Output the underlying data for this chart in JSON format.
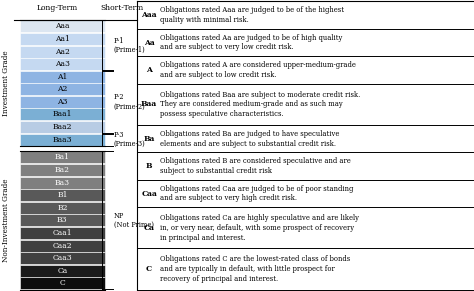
{
  "investment_grades": [
    "Aaa",
    "Aa1",
    "Aa2",
    "Aa3",
    "A1",
    "A2",
    "A3",
    "Baa1",
    "Baa2",
    "Baa3"
  ],
  "non_investment_grades": [
    "Ba1",
    "Ba2",
    "Ba3",
    "B1",
    "B2",
    "B3",
    "Caa1",
    "Caa2",
    "Caa3",
    "Ca",
    "C"
  ],
  "inv_colors_list": [
    "#dce6f1",
    "#c5d9f1",
    "#c5d9f1",
    "#c5d9f1",
    "#8eb4e3",
    "#8eb4e3",
    "#8eb4e3",
    "#7bafd4",
    "#b8cce4",
    "#7bafd4"
  ],
  "non_inv_colors_list": [
    "#7f7f7f",
    "#7f7f7f",
    "#7f7f7f",
    "#595959",
    "#595959",
    "#595959",
    "#404040",
    "#404040",
    "#404040",
    "#1a1a1a",
    "#0d0d0d"
  ],
  "ratings_info": [
    {
      "grade": "Aaa",
      "text": "Obligations rated Aaa are judged to be of the highest\nquality with minimal risk."
    },
    {
      "grade": "Aa",
      "text": "Obligations rated Aa are judged to be of high quality\nand are subject to very low credit risk."
    },
    {
      "grade": "A",
      "text": "Obligations rated A are considered upper-medium-grade\nand are subject to low credit risk."
    },
    {
      "grade": "Baa",
      "text": "Obligations rated Baa are subject to moderate credit risk.\nThey are considered medium-grade and as such may\npossess speculative characteristics."
    },
    {
      "grade": "Ba",
      "text": "Obligations rated Ba are judged to have speculative\nelements and are subject to substantial credit risk."
    },
    {
      "grade": "B",
      "text": "Obligations rated B are considered speculative and are\nsubject to substantial credit risk"
    },
    {
      "grade": "Caa",
      "text": "Obligations rated Caa are judged to be of poor standing\nand are subject to very high credit risk."
    },
    {
      "grade": "Ca",
      "text": "Obligations rated Ca are highly speculative and are likely\nin, or very near, default, with some prospect of recovery\nin principal and interest."
    },
    {
      "grade": "C",
      "text": "Obligations rated C are the lowest-rated class of bonds\nand are typically in default, with little prospect for\nrecovery of principal and interest."
    }
  ],
  "right_row_heights": [
    2,
    2,
    2,
    3,
    2,
    2,
    2,
    3,
    3
  ],
  "bg_color": "#ffffff",
  "fig_width": 4.74,
  "fig_height": 2.91
}
